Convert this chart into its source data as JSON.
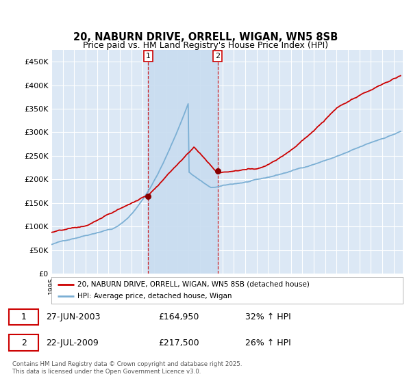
{
  "title_line1": "20, NABURN DRIVE, ORRELL, WIGAN, WN5 8SB",
  "title_line2": "Price paid vs. HM Land Registry's House Price Index (HPI)",
  "ylim": [
    0,
    475000
  ],
  "yticks": [
    0,
    50000,
    100000,
    150000,
    200000,
    250000,
    300000,
    350000,
    400000,
    450000
  ],
  "ytick_labels": [
    "£0",
    "£50K",
    "£100K",
    "£150K",
    "£200K",
    "£250K",
    "£300K",
    "£350K",
    "£400K",
    "£450K"
  ],
  "background_color": "#ffffff",
  "plot_bg_color": "#dce8f5",
  "grid_color": "#ffffff",
  "red_color": "#cc0000",
  "blue_color": "#7bafd4",
  "span_color": "#c8dcf0",
  "sale1_price": 164950,
  "sale1_x": 2003.49,
  "sale2_price": 217500,
  "sale2_x": 2009.56,
  "legend_line1": "20, NABURN DRIVE, ORRELL, WIGAN, WN5 8SB (detached house)",
  "legend_line2": "HPI: Average price, detached house, Wigan",
  "table_row1": [
    "1",
    "27-JUN-2003",
    "£164,950",
    "32% ↑ HPI"
  ],
  "table_row2": [
    "2",
    "22-JUL-2009",
    "£217,500",
    "26% ↑ HPI"
  ],
  "footnote": "Contains HM Land Registry data © Crown copyright and database right 2025.\nThis data is licensed under the Open Government Licence v3.0."
}
